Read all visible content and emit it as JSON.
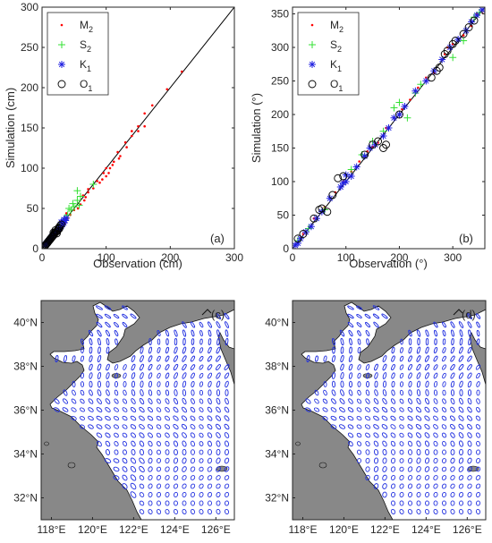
{
  "chart_data": [
    {
      "type": "scatter",
      "panel_label": "(a)",
      "xlabel": "Observation (cm)",
      "ylabel": "Simulation (cm)",
      "xlim": [
        0,
        300
      ],
      "ylim": [
        0,
        300
      ],
      "xticks": [
        "0",
        "100",
        "200",
        "300"
      ],
      "yticks": [
        "0",
        "50",
        "100",
        "150",
        "200",
        "250",
        "300"
      ],
      "reference_line": "y = x",
      "legend_position": "top-left",
      "series": [
        {
          "name": "M",
          "subscript": "2",
          "marker": "dot",
          "color": "#ff0000",
          "points": [
            [
              218,
              220
            ],
            [
              195,
              198
            ],
            [
              172,
              178
            ],
            [
              160,
              152
            ],
            [
              150,
              146
            ],
            [
              140,
              140
            ],
            [
              132,
              126
            ],
            [
              122,
              115
            ],
            [
              120,
              112
            ],
            [
              112,
              108
            ],
            [
              110,
              104
            ],
            [
              106,
              100
            ],
            [
              104,
              94
            ],
            [
              100,
              90
            ],
            [
              94,
              86
            ],
            [
              90,
              82
            ],
            [
              80,
              75
            ],
            [
              72,
              70
            ],
            [
              66,
              60
            ],
            [
              60,
              55
            ],
            [
              56,
              50
            ],
            [
              50,
              48
            ],
            [
              44,
              42
            ],
            [
              40,
              38
            ],
            [
              36,
              32
            ],
            [
              32,
              30
            ],
            [
              28,
              26
            ],
            [
              24,
              22
            ],
            [
              20,
              18
            ],
            [
              16,
              14
            ],
            [
              12,
              12
            ],
            [
              8,
              8
            ],
            [
              5,
              6
            ],
            [
              100,
              100
            ],
            [
              96,
              94
            ],
            [
              130,
              132
            ],
            [
              118,
              120
            ],
            [
              86,
              84
            ],
            [
              64,
              66
            ],
            [
              72,
              74
            ],
            [
              150,
              152
            ],
            [
              160,
              168
            ],
            [
              140,
              146
            ],
            [
              68,
              64
            ],
            [
              30,
              34
            ],
            [
              38,
              44
            ]
          ]
        },
        {
          "name": "S",
          "subscript": "2",
          "marker": "plus",
          "color": "#33e033",
          "points": [
            [
              80,
              80
            ],
            [
              55,
              72
            ],
            [
              60,
              65
            ],
            [
              55,
              60
            ],
            [
              50,
              52
            ],
            [
              45,
              48
            ],
            [
              40,
              42
            ],
            [
              36,
              38
            ],
            [
              32,
              32
            ],
            [
              28,
              30
            ],
            [
              25,
              26
            ],
            [
              22,
              24
            ],
            [
              18,
              20
            ],
            [
              15,
              16
            ],
            [
              12,
              12
            ],
            [
              8,
              8
            ],
            [
              5,
              5
            ],
            [
              48,
              56
            ],
            [
              58,
              54
            ],
            [
              42,
              50
            ]
          ]
        },
        {
          "name": "K",
          "subscript": "1",
          "marker": "asterisk",
          "color": "#2020e0",
          "points": [
            [
              38,
              38
            ],
            [
              36,
              35
            ],
            [
              34,
              32
            ],
            [
              32,
              30
            ],
            [
              30,
              28
            ],
            [
              28,
              26
            ],
            [
              26,
              25
            ],
            [
              25,
              24
            ],
            [
              24,
              22
            ],
            [
              22,
              21
            ],
            [
              20,
              20
            ],
            [
              18,
              18
            ],
            [
              16,
              16
            ],
            [
              14,
              14
            ],
            [
              12,
              12
            ],
            [
              10,
              10
            ],
            [
              8,
              8
            ],
            [
              6,
              6
            ],
            [
              5,
              5
            ],
            [
              30,
              33
            ],
            [
              34,
              36
            ]
          ]
        },
        {
          "name": "O",
          "subscript": "1",
          "marker": "circle",
          "color": "#000000",
          "points": [
            [
              30,
              30
            ],
            [
              28,
              28
            ],
            [
              26,
              26
            ],
            [
              25,
              24
            ],
            [
              24,
              22
            ],
            [
              22,
              21
            ],
            [
              20,
              20
            ],
            [
              19,
              18
            ],
            [
              18,
              17
            ],
            [
              17,
              16
            ],
            [
              16,
              15
            ],
            [
              15,
              14
            ],
            [
              14,
              13
            ],
            [
              13,
              12
            ],
            [
              12,
              11
            ],
            [
              11,
              10
            ],
            [
              10,
              9
            ],
            [
              9,
              8
            ],
            [
              8,
              7
            ],
            [
              7,
              6
            ],
            [
              6,
              5
            ],
            [
              5,
              4
            ],
            [
              27,
              25
            ],
            [
              21,
              23
            ],
            [
              23,
              19
            ],
            [
              18,
              20
            ]
          ]
        }
      ]
    },
    {
      "type": "scatter",
      "panel_label": "(b)",
      "xlabel": "Observation (°)",
      "ylabel": "Simulation (°)",
      "xlim": [
        0,
        360
      ],
      "ylim": [
        0,
        360
      ],
      "xticks": [
        "0",
        "100",
        "200",
        "300"
      ],
      "yticks": [
        "0",
        "50",
        "100",
        "150",
        "200",
        "250",
        "300",
        "350"
      ],
      "reference_line": "y = x",
      "legend_position": "top-left",
      "series": [
        {
          "name": "M",
          "subscript": "2",
          "marker": "dot",
          "color": "#ff0000",
          "points": [
            [
              20,
              22
            ],
            [
              40,
              45
            ],
            [
              60,
              62
            ],
            [
              80,
              84
            ],
            [
              95,
              100
            ],
            [
              110,
              115
            ],
            [
              125,
              130
            ],
            [
              140,
              145
            ],
            [
              150,
              152
            ],
            [
              160,
              158
            ],
            [
              175,
              180
            ],
            [
              190,
              195
            ],
            [
              205,
              208
            ],
            [
              220,
              222
            ],
            [
              235,
              240
            ],
            [
              250,
              255
            ],
            [
              265,
              262
            ],
            [
              280,
              282
            ],
            [
              300,
              305
            ],
            [
              320,
              318
            ],
            [
              335,
              332
            ],
            [
              345,
              350
            ],
            [
              355,
              352
            ],
            [
              285,
              290
            ],
            [
              290,
              300
            ],
            [
              310,
              312
            ]
          ]
        },
        {
          "name": "S",
          "subscript": "2",
          "marker": "plus",
          "color": "#33e033",
          "points": [
            [
              10,
              12
            ],
            [
              30,
              30
            ],
            [
              60,
              58
            ],
            [
              110,
              118
            ],
            [
              130,
              140
            ],
            [
              150,
              160
            ],
            [
              170,
              175
            ],
            [
              190,
              210
            ],
            [
              200,
              218
            ],
            [
              215,
              195
            ],
            [
              240,
              245
            ],
            [
              300,
              285
            ],
            [
              320,
              310
            ],
            [
              340,
              345
            ],
            [
              350,
              352
            ],
            [
              230,
              232
            ]
          ]
        },
        {
          "name": "K",
          "subscript": "1",
          "marker": "asterisk",
          "color": "#2020e0",
          "points": [
            [
              5,
              5
            ],
            [
              10,
              8
            ],
            [
              15,
              15
            ],
            [
              25,
              25
            ],
            [
              35,
              33
            ],
            [
              45,
              45
            ],
            [
              55,
              55
            ],
            [
              70,
              75
            ],
            [
              90,
              92
            ],
            [
              100,
              100
            ],
            [
              110,
              108
            ],
            [
              120,
              122
            ],
            [
              135,
              138
            ],
            [
              145,
              150
            ],
            [
              155,
              155
            ],
            [
              170,
              168
            ],
            [
              180,
              180
            ],
            [
              190,
              195
            ],
            [
              200,
              200
            ],
            [
              210,
              212
            ],
            [
              230,
              235
            ],
            [
              250,
              250
            ],
            [
              265,
              265
            ],
            [
              280,
              282
            ],
            [
              295,
              300
            ],
            [
              310,
              312
            ],
            [
              325,
              325
            ],
            [
              335,
              338
            ],
            [
              345,
              348
            ],
            [
              355,
              356
            ],
            [
              100,
              110
            ],
            [
              95,
              98
            ]
          ]
        },
        {
          "name": "O",
          "subscript": "1",
          "marker": "circle",
          "color": "#000000",
          "points": [
            [
              10,
              15
            ],
            [
              20,
              22
            ],
            [
              40,
              45
            ],
            [
              50,
              58
            ],
            [
              55,
              60
            ],
            [
              65,
              55
            ],
            [
              75,
              80
            ],
            [
              85,
              105
            ],
            [
              95,
              108
            ],
            [
              135,
              140
            ],
            [
              150,
              155
            ],
            [
              160,
              160
            ],
            [
              170,
              150
            ],
            [
              175,
              155
            ],
            [
              200,
              200
            ],
            [
              260,
              255
            ],
            [
              270,
              265
            ],
            [
              275,
              270
            ],
            [
              290,
              295
            ],
            [
              300,
              305
            ],
            [
              305,
              310
            ],
            [
              320,
              320
            ],
            [
              330,
              330
            ],
            [
              340,
              340
            ],
            [
              285,
              290
            ]
          ]
        }
      ]
    },
    {
      "type": "map",
      "panel_label": "(c)",
      "x_ticks": [
        "118°E",
        "120°E",
        "122°E",
        "124°E",
        "126°E"
      ],
      "y_ticks": [
        "32°N",
        "34°N",
        "36°N",
        "38°N",
        "40°N"
      ],
      "lon_range": [
        117.5,
        126.9
      ],
      "lat_range": [
        31.0,
        41.0
      ],
      "ellipse_color": "#1f2ee0",
      "land_color": "#888888"
    },
    {
      "type": "map",
      "panel_label": "(d)",
      "x_ticks": [
        "118°E",
        "120°E",
        "122°E",
        "124°E",
        "126°E"
      ],
      "y_ticks": [
        "32°N",
        "34°N",
        "36°N",
        "38°N",
        "40°N"
      ],
      "lon_range": [
        117.5,
        126.9
      ],
      "lat_range": [
        31.0,
        41.0
      ],
      "ellipse_color": "#1f2ee0",
      "land_color": "#888888"
    }
  ]
}
